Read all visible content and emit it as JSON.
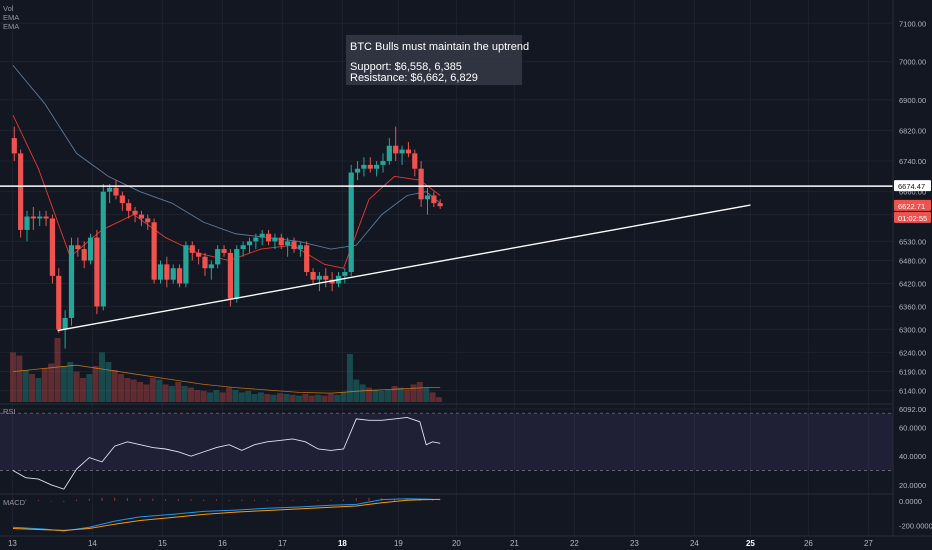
{
  "chart_data": [
    {
      "type": "candlestick",
      "panel": "price",
      "legend": [
        "Vol",
        "EMA",
        "EMA"
      ],
      "annotation": {
        "title": "BTC Bulls must maintain the uptrend",
        "line1": "Support: $6,558, 6,385",
        "line2": "Resistance: $6,662, 6,829"
      },
      "ylim": [
        6092,
        7140
      ],
      "y_ticks": [
        "7100.00",
        "7000.00",
        "6900.00",
        "6820.00",
        "6740.00",
        "6660.00",
        "6600.00",
        "6530.00",
        "6480.00",
        "6420.00",
        "6360.00",
        "6300.00",
        "6240.00",
        "6190.00",
        "6140.00",
        "6092.00"
      ],
      "x_ticks": [
        {
          "label": "13",
          "pos": 12.4
        },
        {
          "label": "14",
          "pos": 92.4
        },
        {
          "label": "15",
          "pos": 162.4
        },
        {
          "label": "16",
          "pos": 222.4
        },
        {
          "label": "17",
          "pos": 282.4
        },
        {
          "label": "18",
          "pos": 342.4,
          "bold": true
        },
        {
          "label": "19",
          "pos": 398.4
        },
        {
          "label": "20",
          "pos": 456.4
        },
        {
          "label": "21",
          "pos": 514.4
        },
        {
          "label": "22",
          "pos": 574.4
        },
        {
          "label": "23",
          "pos": 634.4
        },
        {
          "label": "24",
          "pos": 694.4
        },
        {
          "label": "25",
          "pos": 750.4,
          "bold": true
        },
        {
          "label": "26",
          "pos": 808.4
        },
        {
          "label": "27",
          "pos": 868.4
        }
      ],
      "price_tags": [
        {
          "label": "6674.47",
          "value": 6674.47,
          "bg": "#ffffff",
          "fg": "#131722"
        },
        {
          "label": "6622.71",
          "value": 6622.71,
          "bg": "#ef5350",
          "fg": "#ffffff"
        },
        {
          "label": "01:02:55",
          "value": 6594,
          "bg": "#ef5350",
          "fg": "#ffffff"
        }
      ],
      "horizontal_line": 6674.47,
      "trendline": {
        "from": [
          13.7,
          6297
        ],
        "to": [
          24.6,
          6625
        ]
      },
      "candles": [
        {
          "t": 13.02,
          "o": 6800,
          "h": 6830,
          "l": 6740,
          "c": 6760
        },
        {
          "t": 13.12,
          "o": 6760,
          "h": 6770,
          "l": 6540,
          "c": 6560
        },
        {
          "t": 13.22,
          "o": 6560,
          "h": 6610,
          "l": 6530,
          "c": 6595
        },
        {
          "t": 13.32,
          "o": 6595,
          "h": 6620,
          "l": 6560,
          "c": 6590
        },
        {
          "t": 13.42,
          "o": 6590,
          "h": 6610,
          "l": 6570,
          "c": 6595
        },
        {
          "t": 13.52,
          "o": 6595,
          "h": 6610,
          "l": 6570,
          "c": 6590
        },
        {
          "t": 13.62,
          "o": 6590,
          "h": 6600,
          "l": 6420,
          "c": 6440
        },
        {
          "t": 13.72,
          "o": 6440,
          "h": 6460,
          "l": 6290,
          "c": 6300
        },
        {
          "t": 13.82,
          "o": 6300,
          "h": 6350,
          "l": 6250,
          "c": 6330
        },
        {
          "t": 13.92,
          "o": 6330,
          "h": 6540,
          "l": 6310,
          "c": 6520
        },
        {
          "t": 14.02,
          "o": 6520,
          "h": 6540,
          "l": 6490,
          "c": 6510
        },
        {
          "t": 14.12,
          "o": 6510,
          "h": 6530,
          "l": 6460,
          "c": 6480
        },
        {
          "t": 14.22,
          "o": 6480,
          "h": 6550,
          "l": 6470,
          "c": 6540
        },
        {
          "t": 14.32,
          "o": 6540,
          "h": 6560,
          "l": 6340,
          "c": 6360
        },
        {
          "t": 14.42,
          "o": 6360,
          "h": 6680,
          "l": 6350,
          "c": 6660
        },
        {
          "t": 14.52,
          "o": 6660,
          "h": 6680,
          "l": 6630,
          "c": 6670
        },
        {
          "t": 14.62,
          "o": 6670,
          "h": 6690,
          "l": 6640,
          "c": 6650
        },
        {
          "t": 14.72,
          "o": 6650,
          "h": 6660,
          "l": 6610,
          "c": 6630
        },
        {
          "t": 14.82,
          "o": 6630,
          "h": 6640,
          "l": 6590,
          "c": 6610
        },
        {
          "t": 14.92,
          "o": 6610,
          "h": 6620,
          "l": 6580,
          "c": 6600
        },
        {
          "t": 15.02,
          "o": 6600,
          "h": 6610,
          "l": 6570,
          "c": 6590
        },
        {
          "t": 15.12,
          "o": 6590,
          "h": 6600,
          "l": 6560,
          "c": 6580
        },
        {
          "t": 15.22,
          "o": 6580,
          "h": 6590,
          "l": 6420,
          "c": 6430
        },
        {
          "t": 15.32,
          "o": 6430,
          "h": 6480,
          "l": 6420,
          "c": 6470
        },
        {
          "t": 15.42,
          "o": 6470,
          "h": 6490,
          "l": 6410,
          "c": 6430
        },
        {
          "t": 15.52,
          "o": 6430,
          "h": 6470,
          "l": 6420,
          "c": 6460
        },
        {
          "t": 15.62,
          "o": 6460,
          "h": 6470,
          "l": 6410,
          "c": 6420
        },
        {
          "t": 15.72,
          "o": 6420,
          "h": 6530,
          "l": 6410,
          "c": 6520
        },
        {
          "t": 15.82,
          "o": 6520,
          "h": 6530,
          "l": 6480,
          "c": 6500
        },
        {
          "t": 15.92,
          "o": 6500,
          "h": 6510,
          "l": 6470,
          "c": 6490
        },
        {
          "t": 16.02,
          "o": 6490,
          "h": 6500,
          "l": 6440,
          "c": 6460
        },
        {
          "t": 16.12,
          "o": 6460,
          "h": 6480,
          "l": 6430,
          "c": 6470
        },
        {
          "t": 16.22,
          "o": 6470,
          "h": 6520,
          "l": 6460,
          "c": 6510
        },
        {
          "t": 16.32,
          "o": 6510,
          "h": 6520,
          "l": 6490,
          "c": 6500
        },
        {
          "t": 16.42,
          "o": 6500,
          "h": 6510,
          "l": 6360,
          "c": 6380
        },
        {
          "t": 16.52,
          "o": 6380,
          "h": 6520,
          "l": 6370,
          "c": 6510
        },
        {
          "t": 16.62,
          "o": 6510,
          "h": 6530,
          "l": 6490,
          "c": 6520
        },
        {
          "t": 16.72,
          "o": 6520,
          "h": 6540,
          "l": 6500,
          "c": 6530
        },
        {
          "t": 16.82,
          "o": 6530,
          "h": 6550,
          "l": 6510,
          "c": 6540
        },
        {
          "t": 16.92,
          "o": 6540,
          "h": 6560,
          "l": 6520,
          "c": 6550
        },
        {
          "t": 17.02,
          "o": 6550,
          "h": 6560,
          "l": 6520,
          "c": 6530
        },
        {
          "t": 17.12,
          "o": 6530,
          "h": 6550,
          "l": 6510,
          "c": 6540
        },
        {
          "t": 17.22,
          "o": 6540,
          "h": 6550,
          "l": 6510,
          "c": 6520
        },
        {
          "t": 17.32,
          "o": 6520,
          "h": 6540,
          "l": 6490,
          "c": 6530
        },
        {
          "t": 17.42,
          "o": 6530,
          "h": 6540,
          "l": 6500,
          "c": 6510
        },
        {
          "t": 17.52,
          "o": 6510,
          "h": 6530,
          "l": 6490,
          "c": 6520
        },
        {
          "t": 17.62,
          "o": 6520,
          "h": 6530,
          "l": 6440,
          "c": 6450
        },
        {
          "t": 17.72,
          "o": 6450,
          "h": 6460,
          "l": 6420,
          "c": 6430
        },
        {
          "t": 17.82,
          "o": 6430,
          "h": 6450,
          "l": 6400,
          "c": 6440
        },
        {
          "t": 17.92,
          "o": 6440,
          "h": 6460,
          "l": 6410,
          "c": 6430
        },
        {
          "t": 18.02,
          "o": 6430,
          "h": 6450,
          "l": 6400,
          "c": 6420
        },
        {
          "t": 18.12,
          "o": 6420,
          "h": 6450,
          "l": 6410,
          "c": 6440
        },
        {
          "t": 18.22,
          "o": 6440,
          "h": 6460,
          "l": 6420,
          "c": 6450
        },
        {
          "t": 18.32,
          "o": 6450,
          "h": 6730,
          "l": 6440,
          "c": 6710
        },
        {
          "t": 18.42,
          "o": 6710,
          "h": 6740,
          "l": 6690,
          "c": 6720
        },
        {
          "t": 18.52,
          "o": 6720,
          "h": 6750,
          "l": 6700,
          "c": 6730
        },
        {
          "t": 18.62,
          "o": 6730,
          "h": 6750,
          "l": 6710,
          "c": 6720
        },
        {
          "t": 18.72,
          "o": 6720,
          "h": 6740,
          "l": 6700,
          "c": 6730
        },
        {
          "t": 18.82,
          "o": 6730,
          "h": 6760,
          "l": 6710,
          "c": 6740
        },
        {
          "t": 18.92,
          "o": 6740,
          "h": 6800,
          "l": 6730,
          "c": 6780
        },
        {
          "t": 19.02,
          "o": 6780,
          "h": 6830,
          "l": 6740,
          "c": 6760
        },
        {
          "t": 19.12,
          "o": 6760,
          "h": 6780,
          "l": 6730,
          "c": 6770
        },
        {
          "t": 19.22,
          "o": 6770,
          "h": 6790,
          "l": 6750,
          "c": 6760
        },
        {
          "t": 19.32,
          "o": 6760,
          "h": 6770,
          "l": 6700,
          "c": 6720
        },
        {
          "t": 19.42,
          "o": 6720,
          "h": 6740,
          "l": 6620,
          "c": 6640
        },
        {
          "t": 19.52,
          "o": 6640,
          "h": 6670,
          "l": 6600,
          "c": 6650
        },
        {
          "t": 19.62,
          "o": 6650,
          "h": 6660,
          "l": 6620,
          "c": 6630
        },
        {
          "t": 19.72,
          "o": 6630,
          "h": 6640,
          "l": 6615,
          "c": 6622
        }
      ],
      "ema_fast": {
        "x": [
          13.0,
          13.4,
          13.9,
          14.4,
          14.9,
          15.4,
          15.9,
          16.4,
          16.9,
          17.4,
          17.9,
          18.2,
          18.6,
          19.0,
          19.4,
          19.72
        ],
        "y": [
          6860,
          6720,
          6490,
          6560,
          6600,
          6540,
          6500,
          6480,
          6510,
          6520,
          6470,
          6460,
          6640,
          6700,
          6690,
          6650
        ]
      },
      "ema_slow": {
        "x": [
          13.0,
          13.5,
          14.0,
          14.5,
          15.0,
          15.5,
          16.0,
          16.5,
          17.0,
          17.5,
          18.0,
          18.4,
          18.8,
          19.2,
          19.5,
          19.72
        ],
        "y": [
          6990,
          6890,
          6760,
          6700,
          6660,
          6630,
          6580,
          6550,
          6540,
          6530,
          6510,
          6520,
          6600,
          6650,
          6660,
          6630
        ]
      }
    },
    {
      "type": "bar",
      "panel": "volume",
      "x": [
        13.0,
        13.1,
        13.2,
        13.3,
        13.4,
        13.5,
        13.6,
        13.7,
        13.8,
        13.9,
        14.0,
        14.1,
        14.2,
        14.3,
        14.4,
        14.5,
        14.6,
        14.7,
        14.8,
        14.9,
        15.0,
        15.1,
        15.2,
        15.3,
        15.4,
        15.5,
        15.6,
        15.7,
        15.8,
        15.9,
        16.0,
        16.1,
        16.2,
        16.3,
        16.4,
        16.5,
        16.6,
        16.7,
        16.8,
        16.9,
        17.0,
        17.1,
        17.2,
        17.3,
        17.4,
        17.5,
        17.6,
        17.7,
        17.8,
        17.9,
        18.0,
        18.1,
        18.2,
        18.3,
        18.4,
        18.5,
        18.6,
        18.7,
        18.8,
        18.9,
        19.0,
        19.1,
        19.2,
        19.3,
        19.4,
        19.5,
        19.6,
        19.7
      ],
      "values": [
        62,
        58,
        40,
        35,
        30,
        42,
        48,
        80,
        45,
        50,
        38,
        30,
        35,
        45,
        62,
        50,
        40,
        35,
        30,
        28,
        25,
        22,
        30,
        28,
        22,
        20,
        25,
        20,
        18,
        15,
        14,
        12,
        15,
        12,
        18,
        15,
        12,
        14,
        10,
        12,
        10,
        9,
        11,
        10,
        9,
        8,
        10,
        8,
        9,
        8,
        10,
        9,
        12,
        60,
        28,
        22,
        18,
        15,
        14,
        15,
        20,
        18,
        16,
        22,
        25,
        18,
        12,
        6
      ],
      "vol_ma": {
        "x": [
          13.0,
          13.5,
          14.0,
          14.5,
          15.0,
          15.5,
          16.0,
          16.5,
          17.0,
          17.5,
          18.0,
          18.5,
          19.0,
          19.5,
          19.72
        ],
        "y": [
          38,
          42,
          46,
          40,
          34,
          28,
          22,
          18,
          15,
          12,
          11,
          14,
          16,
          18,
          18
        ]
      }
    },
    {
      "type": "line",
      "panel": "rsi",
      "label": "RSI",
      "ylim": [
        15,
        75
      ],
      "y_ticks": [
        "60.0000",
        "40.0000",
        "20.0000"
      ],
      "bands": [
        70,
        30
      ],
      "x": [
        13.0,
        13.2,
        13.4,
        13.6,
        13.8,
        14.0,
        14.2,
        14.4,
        14.6,
        14.8,
        15.0,
        15.2,
        15.4,
        15.6,
        15.8,
        16.0,
        16.2,
        16.4,
        16.6,
        16.8,
        17.0,
        17.2,
        17.4,
        17.6,
        17.8,
        18.0,
        18.2,
        18.4,
        18.6,
        18.8,
        19.0,
        19.2,
        19.4,
        19.5,
        19.6,
        19.72
      ],
      "y": [
        30,
        25,
        24,
        20,
        17,
        31,
        39,
        36,
        47,
        50,
        48,
        46,
        45,
        43,
        40,
        43,
        46,
        48,
        44,
        48,
        50,
        51,
        52,
        50,
        45,
        44,
        45,
        66,
        65,
        65,
        66,
        67,
        64,
        48,
        50,
        49
      ]
    },
    {
      "type": "line",
      "panel": "macd",
      "label": "MACD",
      "ylim": [
        -270,
        40
      ],
      "y_ticks": [
        "0.0000",
        "-200.0000"
      ],
      "series": [
        {
          "name": "",
          "color": "#2196f3",
          "x": [
            13.0,
            13.5,
            13.8,
            14.2,
            14.6,
            15.0,
            15.5,
            16.0,
            16.5,
            17.0,
            17.5,
            18.0,
            18.4,
            18.8,
            19.2,
            19.5,
            19.72
          ],
          "y": [
            -215,
            -230,
            -245,
            -215,
            -165,
            -130,
            -110,
            -85,
            -75,
            -60,
            -50,
            -35,
            -28,
            10,
            18,
            15,
            10
          ]
        },
        {
          "name": "",
          "color": "#ff9800",
          "x": [
            13.0,
            13.5,
            13.8,
            14.2,
            14.6,
            15.0,
            15.5,
            16.0,
            16.5,
            17.0,
            17.5,
            18.0,
            18.4,
            18.8,
            19.2,
            19.5,
            19.72
          ],
          "y": [
            -225,
            -235,
            -240,
            -225,
            -190,
            -160,
            -135,
            -110,
            -92,
            -78,
            -65,
            -52,
            -42,
            -15,
            5,
            10,
            12
          ]
        }
      ],
      "histogram_x": [
        13.0,
        13.2,
        13.4,
        13.6,
        13.8,
        14.0,
        14.2,
        14.4,
        14.6,
        14.8,
        15.0,
        15.2,
        15.4,
        15.6,
        15.8,
        16.0,
        16.2,
        16.4,
        16.6,
        16.8,
        17.0,
        17.2,
        17.4,
        17.6,
        17.8,
        18.0,
        18.2,
        18.4,
        18.6,
        18.8,
        19.0,
        19.2,
        19.4,
        19.6
      ],
      "histogram": [
        10,
        12,
        8,
        -5,
        -8,
        10,
        18,
        24,
        26,
        22,
        20,
        18,
        15,
        14,
        12,
        10,
        12,
        8,
        10,
        9,
        8,
        7,
        6,
        5,
        8,
        9,
        10,
        22,
        25,
        22,
        18,
        14,
        10,
        6
      ]
    }
  ]
}
